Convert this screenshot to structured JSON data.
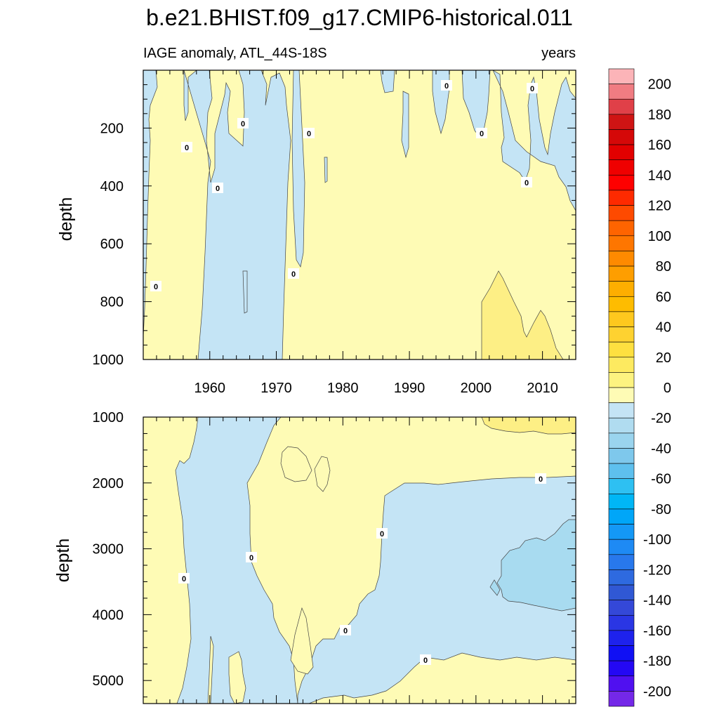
{
  "title": "b.e21.BHIST.f09_g17.CMIP6-historical.011",
  "subtitle_left": "IAGE anomaly, ATL_44S-18S",
  "subtitle_right": "years",
  "colors": {
    "positive_0_20": "#fefbb5",
    "positive_20_40": "#fdef85",
    "negative_0_20": "#c4e4f5",
    "negative_20_40": "#a8dbf0",
    "contour_line": "#444444"
  },
  "chart_data": [
    {
      "type": "heatmap",
      "panel": "upper",
      "xlabel": "",
      "ylabel": "depth",
      "xlim": [
        1950,
        2015
      ],
      "ylim": [
        1000,
        0
      ],
      "x_ticks": [
        "1960",
        "1970",
        "1980",
        "1990",
        "2000",
        "2010"
      ],
      "y_ticks": [
        "200",
        "400",
        "600",
        "800",
        "1000"
      ],
      "contour_labels": [
        "0",
        "0",
        "0",
        "0",
        "0",
        "0",
        "0",
        "0",
        "0",
        "0",
        "0"
      ],
      "regions": [
        {
          "level": "0 to 20",
          "description": "positive anomaly dominates 1975-2015 at all depths"
        },
        {
          "level": "20 to 40",
          "approx_x": [
            2000,
            2012
          ],
          "approx_y": [
            700,
            1000
          ]
        },
        {
          "level": "0 to -20",
          "approx_x": [
            1960,
            1975
          ],
          "approx_y": [
            0,
            1000
          ]
        }
      ]
    },
    {
      "type": "heatmap",
      "panel": "lower",
      "xlabel": "",
      "ylabel": "depth",
      "xlim": [
        1950,
        2015
      ],
      "ylim": [
        5350,
        1000
      ],
      "y_ticks": [
        "1000",
        "2000",
        "3000",
        "4000",
        "5000"
      ],
      "contour_labels": [
        "0",
        "0",
        "0",
        "0",
        "0",
        "0"
      ],
      "regions": [
        {
          "level": "0 to -20",
          "approx_x": [
            1986,
            2015
          ],
          "approx_y": [
            1900,
            4700
          ]
        },
        {
          "level": "-20 to -40",
          "approx_x": [
            2004,
            2015
          ],
          "approx_y": [
            2600,
            3950
          ]
        },
        {
          "level": "20 to 40",
          "approx_x": [
            2001,
            2015
          ],
          "approx_y": [
            1000,
            1250
          ]
        }
      ]
    }
  ],
  "colorbar": {
    "labels": [
      "200",
      "180",
      "160",
      "140",
      "120",
      "100",
      "80",
      "60",
      "40",
      "20",
      "0",
      "-20",
      "-40",
      "-60",
      "-80",
      "-100",
      "-120",
      "-140",
      "-160",
      "-180",
      "-200"
    ],
    "colors": [
      "#fcb4b8",
      "#f07c82",
      "#e04048",
      "#cf1414",
      "#d50808",
      "#e20000",
      "#ef0000",
      "#fe0000",
      "#fe2a00",
      "#fe4a00",
      "#fe6400",
      "#fe7600",
      "#fe8a00",
      "#fe9e00",
      "#feae00",
      "#febc00",
      "#fec81e",
      "#fed230",
      "#fee040",
      "#fdea60",
      "#fdf380",
      "#fefbb5",
      "#c4e4f5",
      "#b0dcf0",
      "#9ad4ee",
      "#7ec8ec",
      "#5ec0ee",
      "#2ec0f2",
      "#00b6f6",
      "#00a6f8",
      "#1498f6",
      "#1e8af4",
      "#2878ec",
      "#2e6ae0",
      "#3058d4",
      "#3448d8",
      "#2a36e4",
      "#1e22ec",
      "#1010f4",
      "#2408f4",
      "#5010f0",
      "#7428e8"
    ]
  }
}
